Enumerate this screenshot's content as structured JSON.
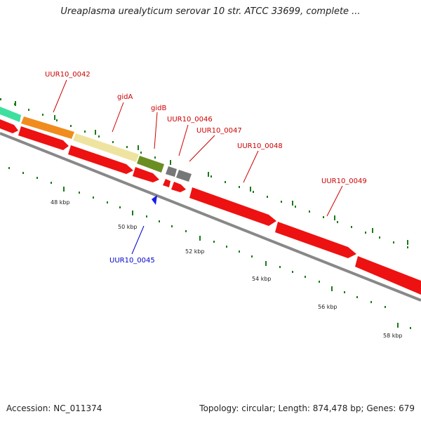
{
  "title": "Ureaplasma urealyticum serovar 10 str. ATCC 33699, complete ...",
  "footer": {
    "accession": "Accession: NC_011374",
    "stats": "Topology: circular; Length: 874,478 bp; Genes: 679"
  },
  "ticks": [
    {
      "label": "48 kbp"
    },
    {
      "label": "50 kbp"
    },
    {
      "label": "52 kbp"
    },
    {
      "label": "54 kbp"
    },
    {
      "label": "56 kbp"
    },
    {
      "label": "58 kbp"
    }
  ],
  "genes": [
    {
      "name": "UUR10_0042",
      "color": "#cc0000"
    },
    {
      "name": "gidA",
      "color": "#cc0000"
    },
    {
      "name": "gidB",
      "color": "#cc0000"
    },
    {
      "name": "UUR10_0046",
      "color": "#cc0000"
    },
    {
      "name": "UUR10_0047",
      "color": "#cc0000"
    },
    {
      "name": "UUR10_0048",
      "color": "#cc0000"
    },
    {
      "name": "UUR10_0049",
      "color": "#cc0000"
    },
    {
      "name": "UUR10_0045",
      "color": "#0000cc"
    }
  ],
  "colors": {
    "cds": "#ee1111",
    "backbone": "#888888",
    "tick": "#1a7a1a",
    "blue_gene": "#1a1aee",
    "teal": "#3ee0a0",
    "orange": "#f08c1e",
    "khaki": "#eee4a0",
    "olive": "#6b8e23",
    "gray": "#777777"
  }
}
